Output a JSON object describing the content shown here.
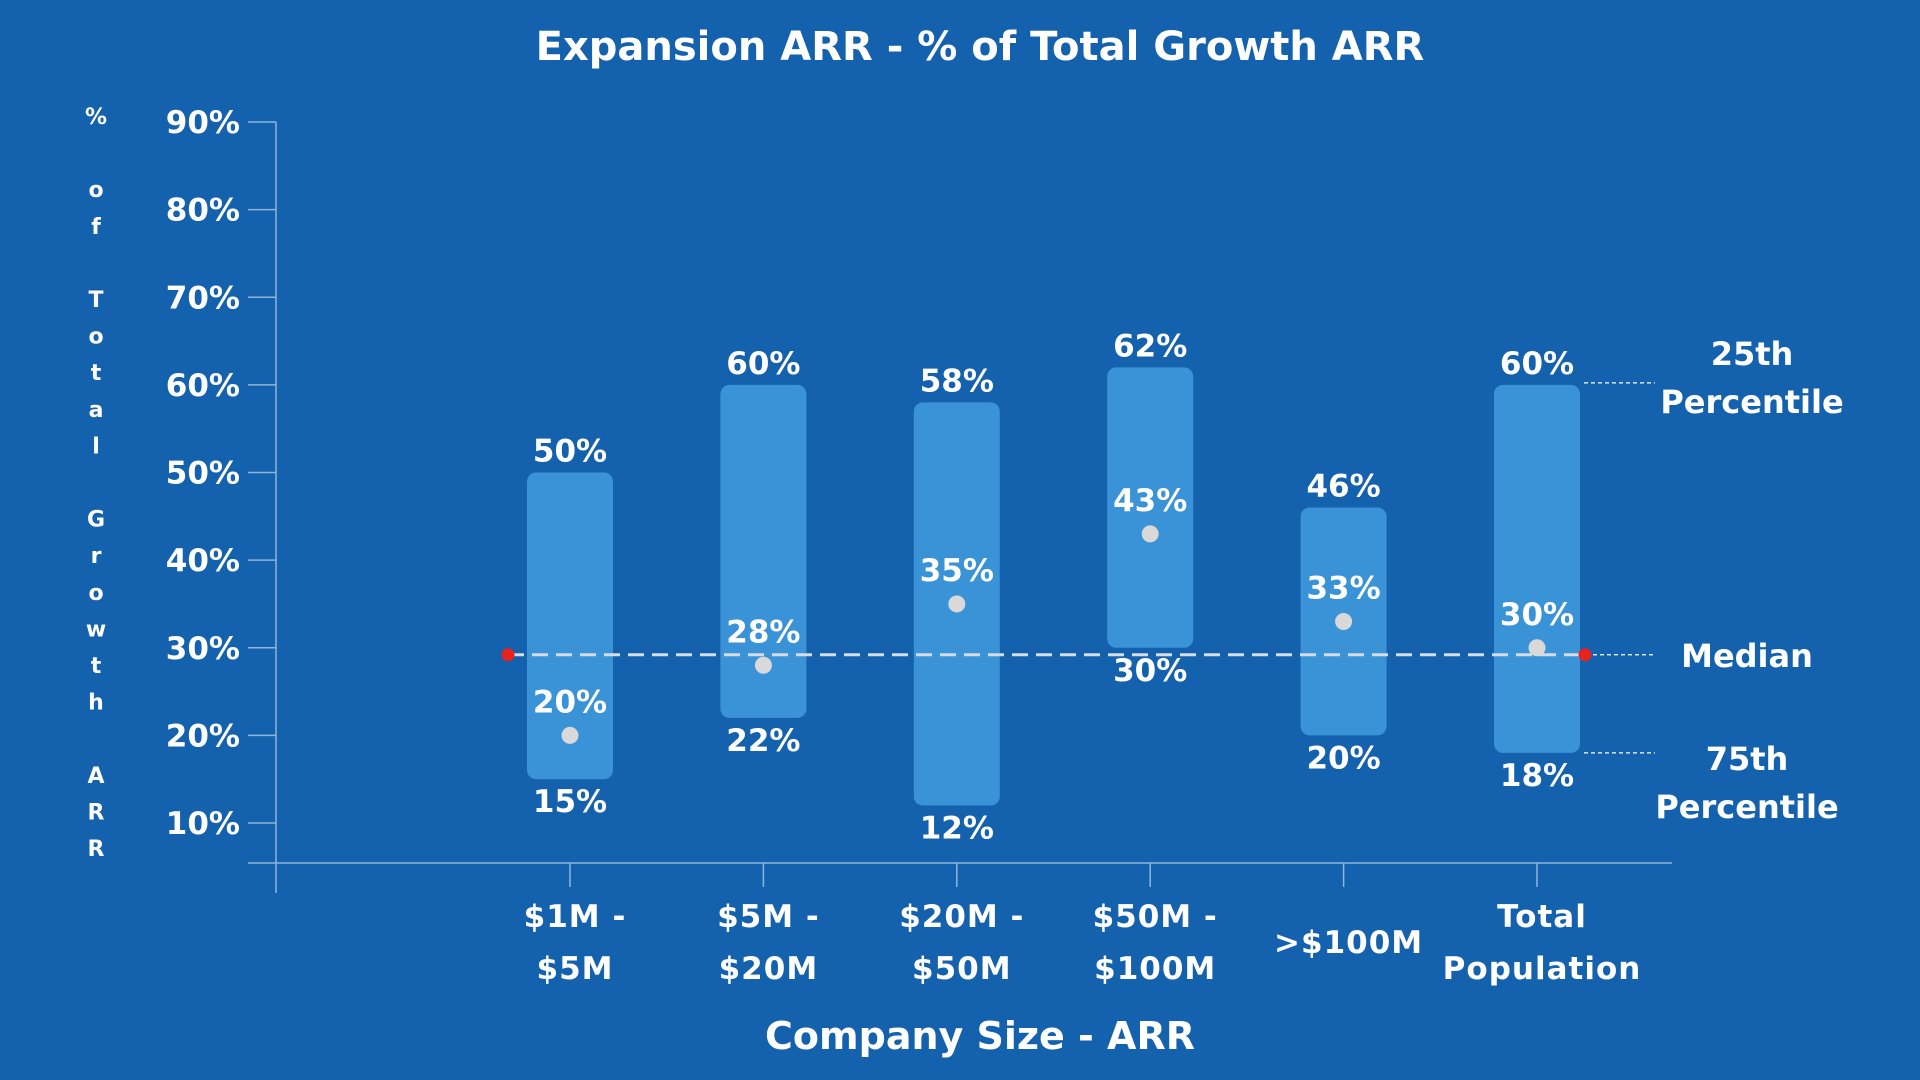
{
  "colors": {
    "background": "#1461ad",
    "box": "#3a93d6",
    "median_dot": "#d9d9d9",
    "median_line": "#d6dce4",
    "marker_red": "#e8231e",
    "text": "#ffffff"
  },
  "chart_data": {
    "type": "range",
    "title": "Expansion ARR - % of Total Growth ARR",
    "xlabel": "Company Size - ARR",
    "ylabel": "% of Total Growth ARR",
    "ylim": [
      5,
      90
    ],
    "yticks": [
      "10%",
      "20%",
      "30%",
      "40%",
      "50%",
      "60%",
      "70%",
      "80%",
      "90%"
    ],
    "ytick_values": [
      10,
      20,
      30,
      40,
      50,
      60,
      70,
      80,
      90
    ],
    "grid": false,
    "categories": [
      {
        "label": [
          "$1M -",
          "$5M"
        ],
        "high": 50,
        "median": 20,
        "low": 15,
        "high_label": "50%",
        "median_label": "20%",
        "low_label": "15%"
      },
      {
        "label": [
          "$5M -",
          "$20M"
        ],
        "high": 60,
        "median": 28,
        "low": 22,
        "high_label": "60%",
        "median_label": "28%",
        "low_label": "22%"
      },
      {
        "label": [
          "$20M -",
          "$50M"
        ],
        "high": 58,
        "median": 35,
        "low": 12,
        "high_label": "58%",
        "median_label": "35%",
        "low_label": "12%"
      },
      {
        "label": [
          "$50M -",
          "$100M"
        ],
        "high": 62,
        "median": 43,
        "low": 30,
        "high_label": "62%",
        "median_label": "43%",
        "low_label": "30%"
      },
      {
        "label": [
          ">$100M"
        ],
        "high": 46,
        "median": 33,
        "low": 20,
        "high_label": "46%",
        "median_label": "33%",
        "low_label": "20%"
      },
      {
        "label": [
          "Total",
          "Population"
        ],
        "high": 60,
        "median": 30,
        "low": 18,
        "high_label": "60%",
        "median_label": "30%",
        "low_label": "18%"
      }
    ],
    "reference_line": {
      "value": 30,
      "style": "dashed"
    },
    "annotations": {
      "top": [
        "25th",
        "Percentile"
      ],
      "middle": [
        "Median"
      ],
      "bottom": [
        "75th",
        "Percentile"
      ]
    }
  }
}
